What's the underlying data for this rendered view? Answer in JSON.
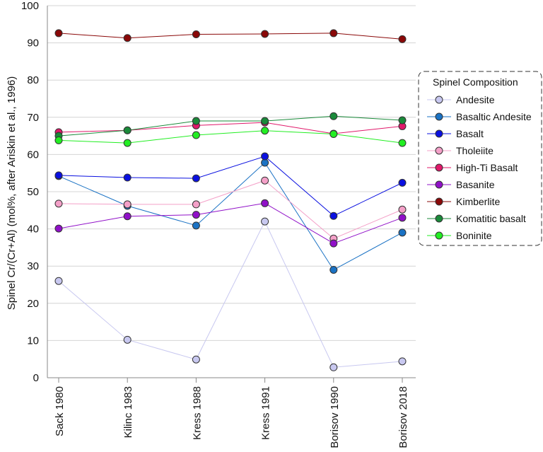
{
  "chart_data": {
    "type": "line",
    "title": "",
    "xlabel": "",
    "ylabel": "Spinel Cr/(Cr+Al)  (mol%, after Ariskin et al., 1996)",
    "ylim": [
      0,
      100
    ],
    "yticks": [
      0,
      10,
      20,
      30,
      40,
      50,
      60,
      70,
      80,
      90,
      100
    ],
    "grid": true,
    "legend_position": "right",
    "legend_title": "Spinel Composition",
    "categories": [
      "Sack 1980",
      "Kilinc 1983",
      "Kress 1988",
      "Kress 1991",
      "Borisov 1990",
      "Borisov 2018"
    ],
    "series": [
      {
        "name": "Andesite",
        "color": "#c8c8f0",
        "values": [
          26.0,
          10.2,
          4.9,
          42.0,
          2.8,
          4.4
        ]
      },
      {
        "name": "Basaltic Andesite",
        "color": "#1a72c4",
        "values": [
          54.2,
          46.2,
          40.9,
          57.8,
          29.0,
          39.0
        ]
      },
      {
        "name": "Basalt",
        "color": "#0a10e0",
        "values": [
          54.4,
          53.8,
          53.6,
          59.5,
          43.5,
          52.4
        ]
      },
      {
        "name": "Tholeiite",
        "color": "#f4a0c8",
        "values": [
          46.8,
          46.6,
          46.6,
          53.0,
          37.4,
          45.2
        ]
      },
      {
        "name": "High-Ti Basalt",
        "color": "#e0186a",
        "values": [
          66.0,
          66.5,
          67.8,
          68.6,
          65.6,
          67.6
        ]
      },
      {
        "name": "Basanite",
        "color": "#9010c8",
        "values": [
          40.1,
          43.4,
          43.8,
          46.9,
          36.1,
          43.0
        ]
      },
      {
        "name": "Kimberlite",
        "color": "#8a0808",
        "values": [
          92.6,
          91.3,
          92.3,
          92.4,
          92.6,
          91.0
        ]
      },
      {
        "name": "Komatitic basalt",
        "color": "#1a8a3a",
        "values": [
          65.0,
          66.5,
          69.0,
          69.0,
          70.3,
          69.2
        ]
      },
      {
        "name": "Boninite",
        "color": "#22ee22",
        "values": [
          63.8,
          63.1,
          65.2,
          66.4,
          65.5,
          63.1
        ]
      }
    ]
  }
}
